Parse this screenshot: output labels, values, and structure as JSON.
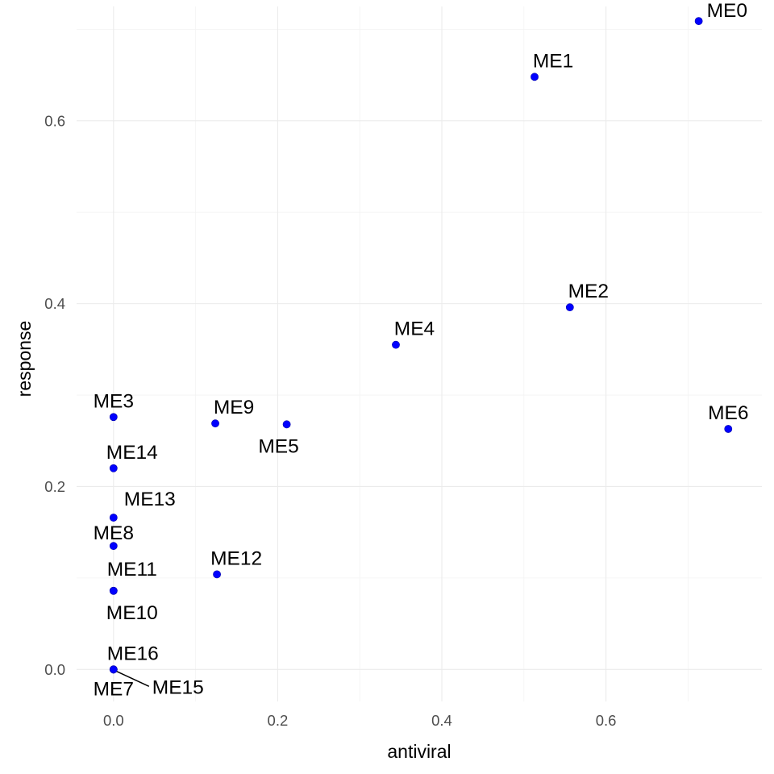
{
  "chart_data": {
    "type": "scatter",
    "xlabel": "antiviral",
    "ylabel": "response",
    "xlim": [
      -0.045,
      0.79
    ],
    "ylim": [
      -0.035,
      0.725
    ],
    "x_ticks": [
      0.0,
      0.2,
      0.4,
      0.6
    ],
    "y_ticks": [
      0.0,
      0.2,
      0.4,
      0.6
    ],
    "x_tick_labels": [
      "0.0",
      "0.2",
      "0.4",
      "0.6"
    ],
    "y_tick_labels": [
      "0.0",
      "0.2",
      "0.4",
      "0.6"
    ],
    "grid": true,
    "point_color": "#0000ff",
    "points": [
      {
        "label": "ME0",
        "x": 0.713,
        "y": 0.709
      },
      {
        "label": "ME1",
        "x": 0.513,
        "y": 0.648
      },
      {
        "label": "ME2",
        "x": 0.556,
        "y": 0.396
      },
      {
        "label": "ME3",
        "x": 0.0,
        "y": 0.276
      },
      {
        "label": "ME4",
        "x": 0.344,
        "y": 0.355
      },
      {
        "label": "ME5",
        "x": 0.211,
        "y": 0.268
      },
      {
        "label": "ME6",
        "x": 0.749,
        "y": 0.263
      },
      {
        "label": "ME7",
        "x": 0.0,
        "y": 0.0
      },
      {
        "label": "ME8",
        "x": 0.0,
        "y": 0.135
      },
      {
        "label": "ME9",
        "x": 0.124,
        "y": 0.269
      },
      {
        "label": "ME10",
        "x": 0.0,
        "y": 0.086
      },
      {
        "label": "ME11",
        "x": 0.0,
        "y": 0.086
      },
      {
        "label": "ME12",
        "x": 0.126,
        "y": 0.104
      },
      {
        "label": "ME13",
        "x": 0.0,
        "y": 0.166
      },
      {
        "label": "ME14",
        "x": 0.0,
        "y": 0.22
      },
      {
        "label": "ME15",
        "x": 0.0,
        "y": 0.0
      },
      {
        "label": "ME16",
        "x": 0.0,
        "y": 0.0
      }
    ]
  }
}
